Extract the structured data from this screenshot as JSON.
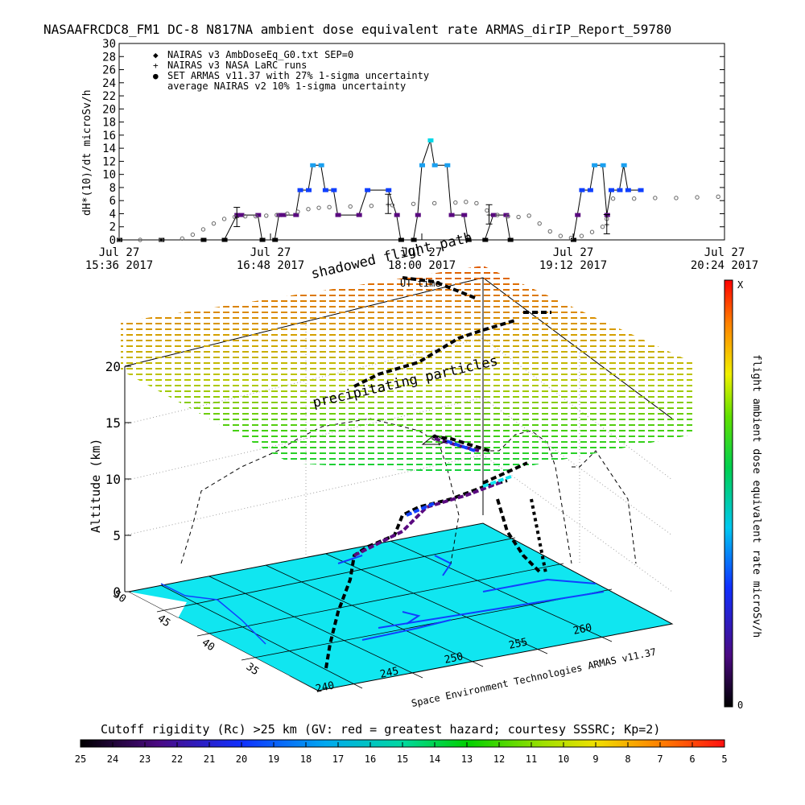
{
  "colors": {
    "ground": "#10e6f0",
    "cyan_light": "#00d8e8",
    "blue": "#1040ff",
    "purple": "#5a0a80",
    "grid": "#9a9a9a"
  },
  "chart_data": [
    {
      "type": "scatter",
      "title": "NASAAFRCDC8_FM1 DC-8   N817NA ambient dose equivalent rate ARMAS_dirIP_Report_59780",
      "ylabel": "dH*(10)/dt microSv/h",
      "xlabel": "UT time",
      "ylim": [
        0,
        30
      ],
      "yticks": [
        "0",
        "2",
        "4",
        "6",
        "8",
        "10",
        "12",
        "14",
        "16",
        "18",
        "20",
        "22",
        "24",
        "26",
        "28",
        "30"
      ],
      "xticks": [
        {
          "day": "Jul 27",
          "time": "15:36 2017"
        },
        {
          "day": "Jul 27",
          "time": "16:48 2017"
        },
        {
          "day": "Jul 27",
          "time": "18:00 2017"
        },
        {
          "day": "Jul 27",
          "time": "19:12 2017"
        },
        {
          "day": "Jul 27",
          "time": "20:24 2017"
        }
      ],
      "xlim_minutes_after_1536": [
        0,
        288
      ],
      "legend": [
        {
          "symbol": "◆",
          "label": "NAIRAS v3 AmbDoseEq_G0.txt SEP=0"
        },
        {
          "symbol": "+",
          "label": "NAIRAS v3 NASA LaRC runs"
        },
        {
          "symbol": "●",
          "label": "SET ARMAS v11.37 with 27% 1-sigma uncertainty"
        },
        {
          "symbol": "",
          "label": "average NAIRAS v2 10% 1-sigma uncertainty"
        }
      ],
      "legend_position": "top-left",
      "series": [
        {
          "name": "NAIRAS v3 AmbDoseEq_G0.txt SEP=0",
          "points": [
            [
              0,
              0
            ],
            [
              10,
              0
            ],
            [
              20,
              0
            ],
            [
              30,
              0.2
            ],
            [
              35,
              0.8
            ],
            [
              40,
              1.6
            ],
            [
              45,
              2.5
            ],
            [
              50,
              3.2
            ],
            [
              55,
              3.5
            ],
            [
              60,
              3.6
            ],
            [
              65,
              3.6
            ],
            [
              70,
              3.7
            ],
            [
              75,
              3.8
            ],
            [
              80,
              4.0
            ],
            [
              85,
              4.3
            ],
            [
              90,
              4.7
            ],
            [
              95,
              4.9
            ],
            [
              100,
              5.0
            ],
            [
              110,
              5.1
            ],
            [
              120,
              5.2
            ],
            [
              130,
              5.3
            ],
            [
              140,
              5.5
            ],
            [
              150,
              5.6
            ],
            [
              160,
              5.7
            ],
            [
              165,
              5.8
            ],
            [
              170,
              5.6
            ],
            [
              175,
              4.5
            ],
            [
              180,
              3.8
            ],
            [
              185,
              3.6
            ],
            [
              190,
              3.5
            ],
            [
              195,
              3.7
            ],
            [
              200,
              2.5
            ],
            [
              205,
              1.3
            ],
            [
              210,
              0.6
            ],
            [
              215,
              0.3
            ],
            [
              220,
              0.6
            ],
            [
              225,
              1.2
            ],
            [
              230,
              2.0
            ],
            [
              232,
              3.2
            ],
            [
              235,
              6.3
            ],
            [
              245,
              6.3
            ],
            [
              255,
              6.4
            ],
            [
              265,
              6.4
            ],
            [
              275,
              6.5
            ],
            [
              285,
              6.6
            ]
          ]
        },
        {
          "name": "NAIRAS v3 NASA LaRC runs",
          "points": [
            [
              56,
              3.5
            ],
            [
              128,
              5.5
            ],
            [
              176,
              3.9
            ],
            [
              232,
              2.4
            ]
          ]
        },
        {
          "name": "SET ARMAS v11.37 with 27% 1-sigma uncertainty",
          "points": [
            [
              0,
              0
            ],
            [
              20,
              0
            ],
            [
              40,
              0
            ],
            [
              50,
              0
            ],
            [
              56,
              3.8
            ],
            [
              58,
              3.8
            ],
            [
              66,
              3.8
            ],
            [
              68,
              0
            ],
            [
              74,
              0
            ],
            [
              76,
              3.8
            ],
            [
              78,
              3.8
            ],
            [
              84,
              3.8
            ],
            [
              86,
              7.6
            ],
            [
              90,
              7.6
            ],
            [
              92,
              11.4
            ],
            [
              96,
              11.4
            ],
            [
              98,
              7.6
            ],
            [
              102,
              7.6
            ],
            [
              104,
              3.8
            ],
            [
              114,
              3.8
            ],
            [
              118,
              7.6
            ],
            [
              128,
              7.6
            ],
            [
              132,
              3.8
            ],
            [
              134,
              0
            ],
            [
              140,
              0
            ],
            [
              142,
              3.8
            ],
            [
              144,
              11.4
            ],
            [
              148,
              15.2
            ],
            [
              150,
              11.4
            ],
            [
              156,
              11.4
            ],
            [
              158,
              3.8
            ],
            [
              164,
              3.8
            ],
            [
              166,
              0
            ],
            [
              174,
              0
            ],
            [
              178,
              3.8
            ],
            [
              184,
              3.8
            ],
            [
              186,
              0
            ],
            [
              216,
              0
            ],
            [
              218,
              3.8
            ],
            [
              220,
              7.6
            ],
            [
              224,
              7.6
            ],
            [
              226,
              11.4
            ],
            [
              230,
              11.4
            ],
            [
              232,
              3.8
            ],
            [
              234,
              7.6
            ],
            [
              238,
              7.6
            ],
            [
              240,
              11.4
            ],
            [
              242,
              7.6
            ],
            [
              248,
              7.6
            ]
          ]
        }
      ]
    },
    {
      "type": "scatter3d",
      "zlabel": "Altitude (km)",
      "zticks": [
        "0",
        "5",
        "10",
        "15",
        "20"
      ],
      "lat_ticks": [
        "50",
        "45",
        "40",
        "35"
      ],
      "lon_ticks": [
        "240",
        "245",
        "250",
        "255",
        "260"
      ],
      "annotations": [
        "shadowed flight path",
        "precipitating particles",
        "Space Environment Technologies ARMAS v11.37"
      ],
      "colorbar": {
        "label": "flight ambient dose equivalent rate microSv/h",
        "top": "X",
        "bottom": "0"
      }
    }
  ],
  "rigidity_bar": {
    "title": "Cutoff rigidity (Rc) >25 km (GV: red = greatest hazard; courtesy SSSRC; Kp=2)",
    "ticks": [
      "25",
      "24",
      "23",
      "22",
      "21",
      "20",
      "19",
      "18",
      "17",
      "16",
      "15",
      "14",
      "13",
      "12",
      "11",
      "10",
      "9",
      "8",
      "7",
      "6",
      "5"
    ]
  }
}
